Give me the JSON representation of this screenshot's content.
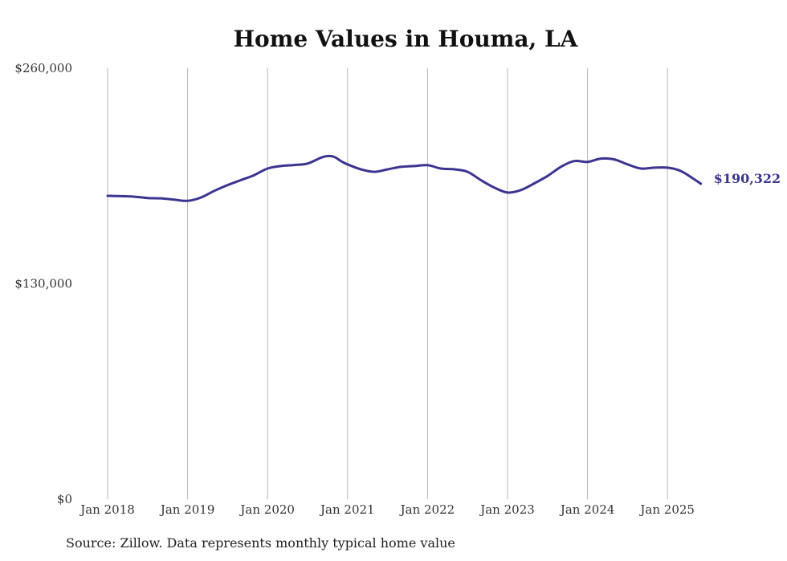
{
  "chart_data": {
    "type": "line",
    "title": "Home Values in Houma, LA",
    "source": "Source: Zillow. Data represents monthly typical home value",
    "ylim": [
      0,
      260000
    ],
    "y_ticks": [
      0,
      130000,
      260000
    ],
    "y_tick_labels": [
      "$0",
      "$130,000",
      "$260,000"
    ],
    "x_ticks": [
      "2018-01",
      "2019-01",
      "2020-01",
      "2021-01",
      "2022-01",
      "2023-01",
      "2024-01",
      "2025-01"
    ],
    "x_tick_labels": [
      "Jan 2018",
      "Jan 2019",
      "Jan 2020",
      "Jan 2021",
      "Jan 2022",
      "Jan 2023",
      "Jan 2024",
      "Jan 2025"
    ],
    "x_range": [
      "2018-01",
      "2025-06"
    ],
    "grid": "vertical",
    "line_color": "#3b3591",
    "end_label": "$190,322",
    "series": [
      {
        "x": [
          "2018-01",
          "2018-03",
          "2018-05",
          "2018-07",
          "2018-09",
          "2018-11",
          "2019-01",
          "2019-03",
          "2019-05",
          "2019-07",
          "2019-09",
          "2019-11",
          "2020-01",
          "2020-03",
          "2020-05",
          "2020-07",
          "2020-09",
          "2020-10",
          "2020-11",
          "2020-12",
          "2021-01",
          "2021-03",
          "2021-05",
          "2021-07",
          "2021-09",
          "2021-11",
          "2022-01",
          "2022-03",
          "2022-05",
          "2022-07",
          "2022-09",
          "2022-11",
          "2023-01",
          "2023-03",
          "2023-05",
          "2023-07",
          "2023-09",
          "2023-11",
          "2024-01",
          "2024-03",
          "2024-05",
          "2024-07",
          "2024-09",
          "2024-11",
          "2025-01",
          "2025-03",
          "2025-05",
          "2025-06"
        ],
        "values": [
          183000,
          182800,
          182500,
          181700,
          181500,
          180700,
          180000,
          182000,
          186000,
          189500,
          192500,
          195500,
          199500,
          201000,
          201600,
          202500,
          206000,
          207000,
          206500,
          204000,
          202000,
          199000,
          197500,
          199000,
          200500,
          201000,
          201500,
          199500,
          199000,
          197500,
          192500,
          188000,
          185000,
          186500,
          190500,
          195000,
          200500,
          204000,
          203500,
          205500,
          205000,
          202000,
          199500,
          200000,
          200000,
          198000,
          193000,
          190322
        ]
      }
    ]
  }
}
